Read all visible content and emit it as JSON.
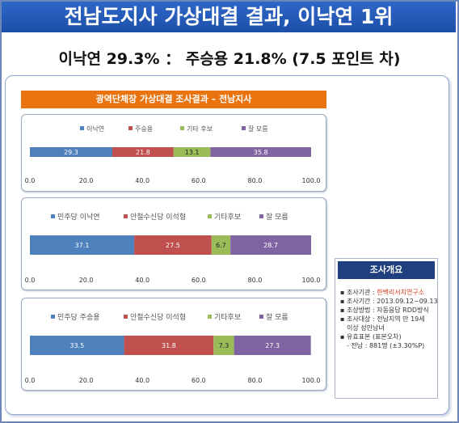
{
  "header": {
    "title": "전남도지사 가상대결 결과, 이낙연 1위"
  },
  "subtitle": "이낙연 29.3% ： 주승용 21.8% (7.5 포인트 차)",
  "chart_title": "광역단체장 가상대결 조사결과 – 전남지사",
  "summary": {
    "heading": "조사개요",
    "items": [
      {
        "label": "조사기관 : ",
        "value": "한백리서치연구소"
      },
      {
        "label": "조사기간 : ",
        "value": "2013.09.12~09.13"
      },
      {
        "label": "조상방법 : ",
        "value": "자동응답 RDD방식"
      },
      {
        "label": "조사대상 : ",
        "value": "전남지역 만 19세"
      },
      {
        "label": "",
        "value": "이상 성인남녀"
      },
      {
        "label": "유효표본 ",
        "value": "(표본오차)"
      },
      {
        "label": "- 전남 : ",
        "value": "881명 (±3.30%P)"
      }
    ]
  },
  "colors": {
    "blue": "#4f81bd",
    "red": "#c0504d",
    "green": "#9bbb59",
    "purple": "#8064a2",
    "header": "#1f4fa8",
    "orange": "#e8730f"
  },
  "chart_data": [
    {
      "type": "bar",
      "orientation": "horizontal-stacked",
      "series": [
        {
          "name": "이낙연",
          "values": [
            29.3
          ]
        },
        {
          "name": "주승용",
          "values": [
            21.8
          ]
        },
        {
          "name": "기타 후보",
          "values": [
            13.1
          ]
        },
        {
          "name": "잘 모름",
          "values": [
            35.8
          ]
        }
      ],
      "xlim": [
        0,
        100
      ],
      "ticks": [
        "0.0",
        "20.0",
        "40.0",
        "60.0",
        "80.0",
        "100.0"
      ],
      "legend": "top"
    },
    {
      "type": "bar",
      "orientation": "horizontal-stacked",
      "series": [
        {
          "name": "민주당 이낙연",
          "values": [
            37.1
          ]
        },
        {
          "name": "안철수신당 이석형",
          "values": [
            27.5
          ]
        },
        {
          "name": "기타후보",
          "values": [
            6.7
          ]
        },
        {
          "name": "잘 모름",
          "values": [
            28.7
          ]
        }
      ],
      "xlim": [
        0,
        100
      ],
      "ticks": [
        "0.0",
        "20.0",
        "40.0",
        "60.0",
        "80.0",
        "100.0"
      ],
      "legend": "top"
    },
    {
      "type": "bar",
      "orientation": "horizontal-stacked",
      "series": [
        {
          "name": "민주당 주승용",
          "values": [
            33.5
          ]
        },
        {
          "name": "안철수신당 이석형",
          "values": [
            31.8
          ]
        },
        {
          "name": "기타후보",
          "values": [
            7.3
          ]
        },
        {
          "name": "잘 모름",
          "values": [
            27.3
          ]
        }
      ],
      "xlim": [
        0,
        100
      ],
      "ticks": [
        "0.0",
        "20.0",
        "40.0",
        "60.0",
        "80.0",
        "100.0"
      ],
      "legend": "top"
    }
  ]
}
